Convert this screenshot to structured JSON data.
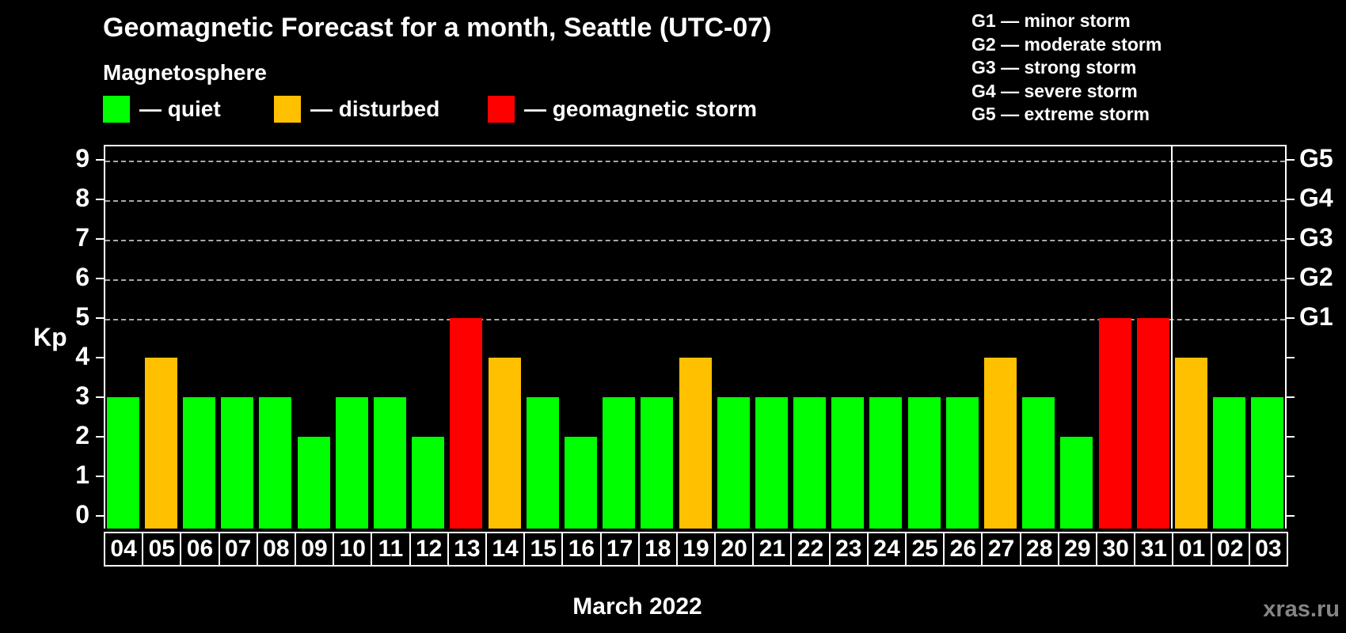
{
  "title": "Geomagnetic Forecast for a month, Seattle (UTC-07)",
  "subtitle": "Magnetosphere",
  "legend": {
    "items": [
      {
        "name": "quiet",
        "label": "— quiet",
        "color": "#00ff00"
      },
      {
        "name": "disturbed",
        "label": "— disturbed",
        "color": "#ffc000"
      },
      {
        "name": "storm",
        "label": "— geomagnetic storm",
        "color": "#ff0000"
      }
    ]
  },
  "g_legend": [
    "G1 — minor storm",
    "G2 — moderate storm",
    "G3 — strong storm",
    "G4 — severe storm",
    "G5 — extreme storm"
  ],
  "axis": {
    "kp_label": "Kp",
    "kp_ticks": [
      "0",
      "1",
      "2",
      "3",
      "4",
      "5",
      "6",
      "7",
      "8",
      "9"
    ],
    "g_labels": [
      "G1",
      "G2",
      "G3",
      "G4",
      "G5"
    ]
  },
  "xlabel": "March 2022",
  "watermark": "xras.ru",
  "colors": {
    "quiet": "#00ff00",
    "disturbed": "#ffc000",
    "storm": "#ff0000",
    "grid": "#a9a9a9",
    "frame": "#ffffff",
    "watermark": "#858585"
  },
  "chart_data": {
    "type": "bar",
    "title": "Geomagnetic Forecast for a month, Seattle (UTC-07)",
    "xlabel": "March 2022",
    "ylabel": "Kp",
    "ylim": [
      0,
      9
    ],
    "grid": "dashed horizontal lines at Kp 5-9 (G1-G5 levels)",
    "legend_position": "top",
    "right_axis_labels": {
      "G1": 5,
      "G2": 6,
      "G3": 7,
      "G4": 8,
      "G5": 9
    },
    "categories": [
      "04",
      "05",
      "06",
      "07",
      "08",
      "09",
      "10",
      "11",
      "12",
      "13",
      "14",
      "15",
      "16",
      "17",
      "18",
      "19",
      "20",
      "21",
      "22",
      "23",
      "24",
      "25",
      "26",
      "27",
      "28",
      "29",
      "30",
      "31",
      "01",
      "02",
      "03"
    ],
    "values": [
      3,
      4,
      3,
      3,
      3,
      2,
      3,
      3,
      2,
      5,
      4,
      3,
      2,
      3,
      3,
      4,
      3,
      3,
      3,
      3,
      3,
      3,
      3,
      4,
      3,
      2,
      5,
      5,
      4,
      3,
      3
    ],
    "statuses": [
      "quiet",
      "disturbed",
      "quiet",
      "quiet",
      "quiet",
      "quiet",
      "quiet",
      "quiet",
      "quiet",
      "storm",
      "disturbed",
      "quiet",
      "quiet",
      "quiet",
      "quiet",
      "disturbed",
      "quiet",
      "quiet",
      "quiet",
      "quiet",
      "quiet",
      "quiet",
      "quiet",
      "disturbed",
      "quiet",
      "quiet",
      "storm",
      "storm",
      "disturbed",
      "quiet",
      "quiet"
    ],
    "month_boundary_after_index": 27
  }
}
